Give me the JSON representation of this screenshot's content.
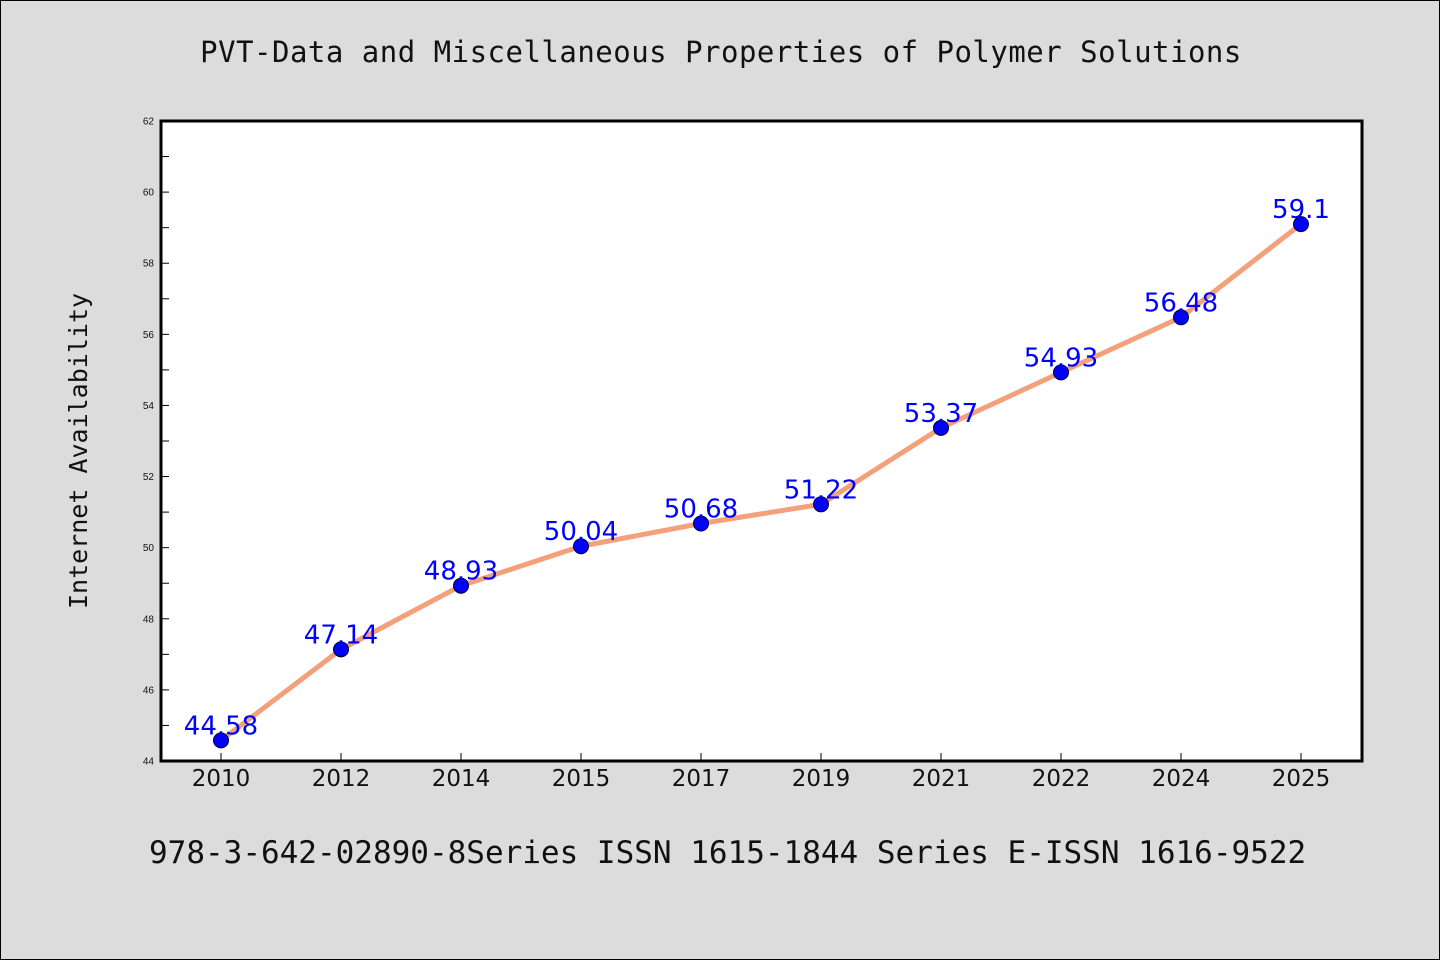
{
  "chart_data": {
    "type": "line",
    "title": "PVT-Data and Miscellaneous Properties of Polymer Solutions",
    "xlabel": "",
    "ylabel": "Internet Availability",
    "categories": [
      "2010",
      "2012",
      "2014",
      "2015",
      "2017",
      "2019",
      "2021",
      "2022",
      "2024",
      "2025"
    ],
    "values": [
      44.58,
      47.14,
      48.93,
      50.04,
      50.68,
      51.22,
      53.37,
      54.93,
      56.48,
      59.1
    ],
    "data_labels": [
      "44.58",
      "47.14",
      "48.93",
      "50.04",
      "50.68",
      "51.22",
      "53.37",
      "54.93",
      "56.48",
      "59.1"
    ],
    "ylim": [
      44,
      62
    ],
    "yticks": [
      "44",
      "46",
      "48",
      "50",
      "52",
      "54",
      "56",
      "58",
      "60",
      "62"
    ],
    "grid": false,
    "line_color": "#f4a07a",
    "marker_color": "#0000ff",
    "label_color": "#0000ff",
    "background": "#dcdcdc",
    "plot_background": "#ffffff"
  },
  "footer_text": "978-3-642-02890-8Series ISSN 1615-1844 Series E-ISSN 1616-9522"
}
